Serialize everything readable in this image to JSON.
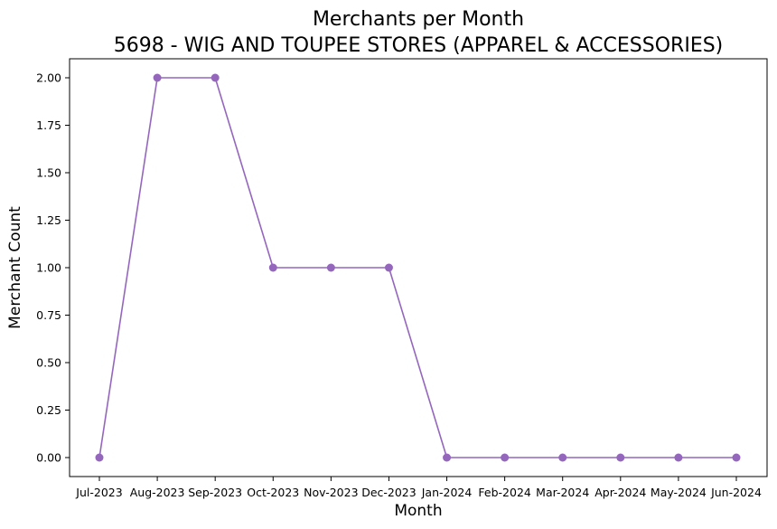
{
  "chart_data": {
    "type": "line",
    "title": "Merchants per Month",
    "subtitle": "5698 - WIG AND TOUPEE STORES (APPAREL & ACCESSORIES)",
    "xlabel": "Month",
    "ylabel": "Merchant Count",
    "categories": [
      "Jul-2023",
      "Aug-2023",
      "Sep-2023",
      "Oct-2023",
      "Nov-2023",
      "Dec-2023",
      "Jan-2024",
      "Feb-2024",
      "Mar-2024",
      "Apr-2024",
      "May-2024",
      "Jun-2024"
    ],
    "series": [
      {
        "values": [
          0,
          2,
          2,
          1,
          1,
          1,
          0,
          0,
          0,
          0,
          0,
          0
        ],
        "color": "#9467bd",
        "marker": "circle"
      }
    ],
    "ylim": [
      -0.1,
      2.1
    ],
    "yticks": [
      "0.00",
      "0.25",
      "0.50",
      "0.75",
      "1.00",
      "1.25",
      "1.50",
      "1.75",
      "2.00"
    ],
    "grid": false,
    "legend": "none"
  }
}
